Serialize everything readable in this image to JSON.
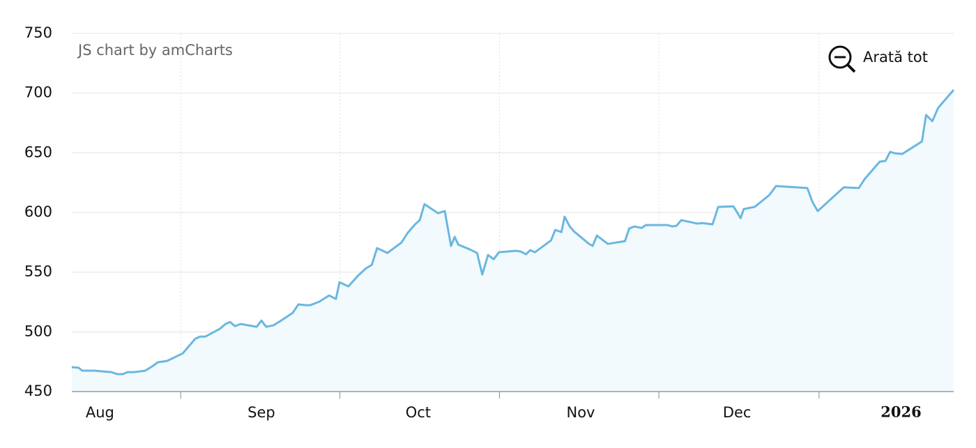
{
  "chart_data": {
    "type": "area",
    "credit": "JS chart by amCharts",
    "zoom_button": "Arată tot",
    "x": [
      0,
      1.3,
      2.0,
      4.3,
      7.6,
      8.7,
      9.8,
      10.7,
      12.0,
      14.1,
      15.4,
      16.5,
      18.3,
      21.3,
      23.7,
      24.6,
      25.6,
      28.4,
      29.5,
      30.4,
      31.3,
      32.4,
      35.5,
      36.4,
      37.3,
      38.7,
      40.2,
      42.4,
      43.5,
      44.8,
      45.8,
      47.5,
      49.4,
      50.7,
      51.4,
      53.1,
      54.9,
      56.5,
      57.6,
      58.6,
      60.6,
      63.3,
      64.5,
      65.9,
      66.8,
      67.7,
      70.3,
      71.6,
      72.8,
      73.5,
      74.2,
      76.4,
      77.8,
      78.8,
      79.9,
      81.0,
      82.0,
      85.3,
      86.2,
      87.2,
      88.0,
      88.9,
      92.0,
      92.8,
      94.0,
      94.6,
      95.6,
      96.4,
      99.3,
      100.0,
      100.8,
      102.9,
      106.2,
      107.0,
      108.0,
      109.4,
      110.2,
      114.3,
      115.3,
      116.1,
      117.0,
      120.1,
      121.0,
      123.0,
      124.1,
      127.0,
      128.4,
      129.0,
      131.1,
      133.9,
      135.2,
      141.2,
      142.2,
      143.2,
      148.2,
      151.1,
      152.2,
      155.1,
      156.2,
      157.1,
      158.0,
      159.4,
      163.2,
      164.0,
      165.2,
      166.3,
      169.3
    ],
    "series": [
      {
        "color": "#6ab7df",
        "fill": "#f2fafd",
        "values": [
          470.4,
          470,
          467.5,
          467.5,
          466.3,
          464.6,
          464.6,
          466.3,
          466.3,
          467.5,
          471,
          474.5,
          475.7,
          482,
          494.3,
          496,
          496,
          502.5,
          506.6,
          508.3,
          504.8,
          506.6,
          504.3,
          509.5,
          504.3,
          505.5,
          509.5,
          515.9,
          523,
          522.4,
          522.4,
          525.3,
          530.5,
          527.6,
          541.6,
          538.1,
          546.9,
          553.3,
          556.2,
          570.2,
          566.1,
          574.9,
          583.1,
          590.1,
          593.6,
          607,
          599.4,
          601.2,
          572,
          579.6,
          573.1,
          569.1,
          566.1,
          548.1,
          564.4,
          560.9,
          566.7,
          567.9,
          567.3,
          565,
          568.5,
          566.7,
          576.6,
          585.4,
          583.6,
          596.5,
          588.3,
          584.2,
          573.7,
          572,
          580.7,
          573.7,
          576,
          586.6,
          588.3,
          587.1,
          589.5,
          589.5,
          588.3,
          588.9,
          593.6,
          590.7,
          591.2,
          590.1,
          604.7,
          605.2,
          595.3,
          602.9,
          604.7,
          614.6,
          622.2,
          620.5,
          608.7,
          601.2,
          621.1,
          620.5,
          628,
          642.6,
          643.2,
          650.8,
          649.6,
          649,
          659.5,
          681.7,
          676.5,
          687.6,
          702.7
        ]
      }
    ],
    "xlim": [
      0,
      169.3
    ],
    "xticks": [
      {
        "value": 5.4,
        "label": "Aug"
      },
      {
        "value": 36.4,
        "label": "Sep"
      },
      {
        "value": 66.5,
        "label": "Oct"
      },
      {
        "value": 97.7,
        "label": "Nov"
      },
      {
        "value": 127.7,
        "label": "Dec"
      },
      {
        "value": 159.2,
        "label": "2026"
      }
    ],
    "ylim": [
      450,
      750
    ],
    "yticks": [
      450,
      500,
      550,
      600,
      650,
      700,
      750
    ],
    "grid": true
  }
}
